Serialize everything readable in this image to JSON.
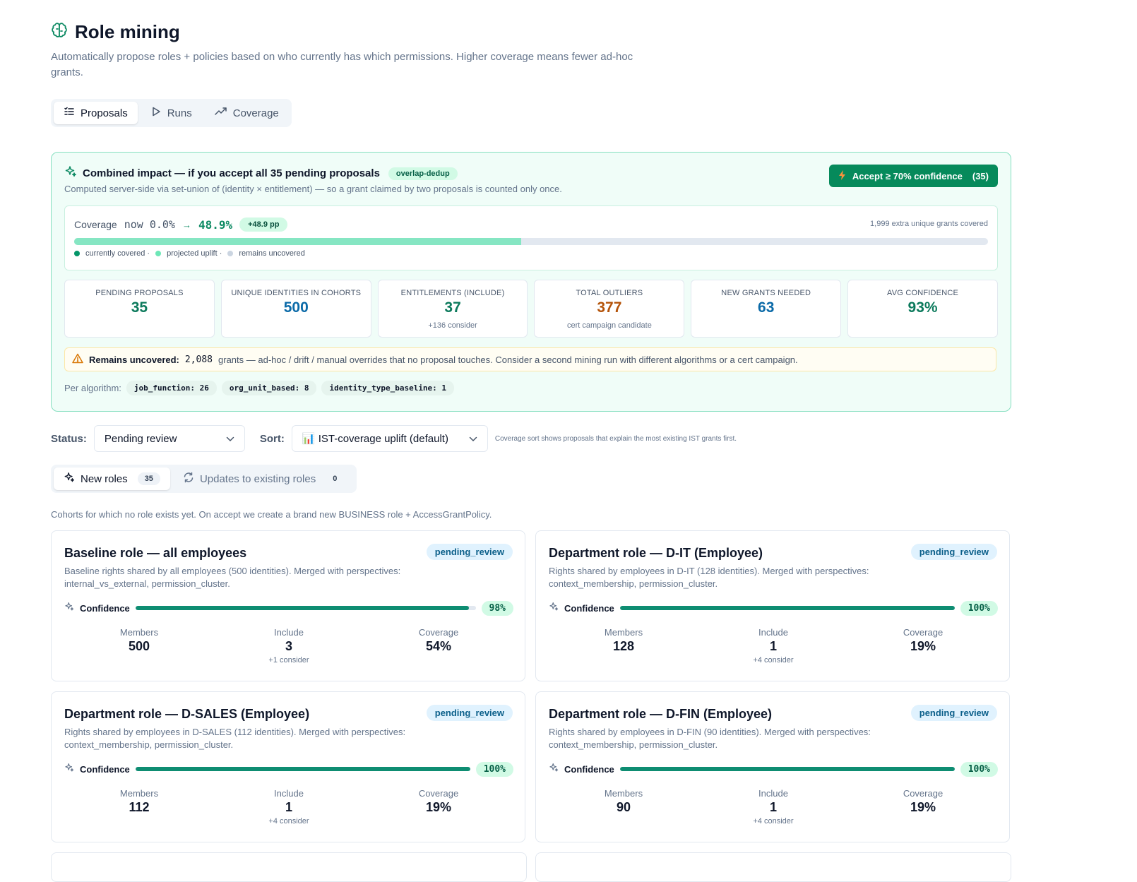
{
  "header": {
    "title": "Role mining",
    "subtitle": "Automatically propose roles + policies based on who currently has which permissions. Higher coverage means fewer ad-hoc grants."
  },
  "tabs": [
    {
      "label": "Proposals",
      "icon": "list-check-icon",
      "active": true
    },
    {
      "label": "Runs",
      "icon": "play-icon",
      "active": false
    },
    {
      "label": "Coverage",
      "icon": "trend-up-icon",
      "active": false
    }
  ],
  "impact": {
    "title": "Combined impact — if you accept all 35 pending proposals",
    "tag": "overlap-dedup",
    "description": "Computed server-side via set-union of (identity × entitlement) — so a grant claimed by two proposals is counted only once.",
    "accept_label": "Accept ≥ 70% confidence",
    "accept_count": "(35)",
    "coverage": {
      "label": "Coverage",
      "now": "now 0.0%",
      "arrow": "→",
      "projected": "48.9%",
      "delta": "+48.9 pp",
      "extra": "1,999 extra unique grants covered",
      "current_pct": 0.0,
      "projected_pct": 48.9,
      "legend": [
        "currently covered ·",
        "projected uplift ·",
        "remains uncovered"
      ]
    },
    "stats": [
      {
        "label": "Pending proposals",
        "value": "35",
        "sub": "",
        "color": "green"
      },
      {
        "label": "Unique identities in cohorts",
        "value": "500",
        "sub": "",
        "color": "blue"
      },
      {
        "label": "Entitlements (include)",
        "value": "37",
        "sub": "+136 consider",
        "color": "green"
      },
      {
        "label": "Total outliers",
        "value": "377",
        "sub": "cert campaign candidate",
        "color": "orange"
      },
      {
        "label": "New grants needed",
        "value": "63",
        "sub": "",
        "color": "blue"
      },
      {
        "label": "Avg confidence",
        "value": "93%",
        "sub": "",
        "color": "green"
      }
    ],
    "uncovered": {
      "label": "Remains uncovered:",
      "count": "2,088",
      "text": "grants — ad-hoc / drift / manual overrides that no proposal touches. Consider a second mining run with different algorithms or a cert campaign."
    },
    "per_algorithm": {
      "label": "Per algorithm:",
      "chips": [
        "job_function: 26",
        "org_unit_based: 8",
        "identity_type_baseline: 1"
      ]
    }
  },
  "filters": {
    "status_label": "Status:",
    "status_value": "Pending review",
    "sort_label": "Sort:",
    "sort_icon": "📊",
    "sort_value": "IST-coverage uplift (default)",
    "note": "Coverage sort shows proposals that explain the most existing IST grants first."
  },
  "subtabs": [
    {
      "label": "New roles",
      "count": "35",
      "active": true,
      "icon": "sparkle-icon"
    },
    {
      "label": "Updates to existing roles",
      "count": "0",
      "active": false,
      "icon": "refresh-icon"
    }
  ],
  "cohort_note": "Cohorts for which no role exists yet. On accept we create a brand new BUSINESS role + AccessGrantPolicy.",
  "cards": [
    {
      "title": "Baseline role — all employees",
      "status": "pending_review",
      "desc": "Baseline rights shared by all employees (500 identities). Merged with perspectives: internal_vs_external, permission_cluster.",
      "confidence_label": "Confidence",
      "confidence": "98%",
      "confidence_value": 98,
      "members_label": "Members",
      "members": "500",
      "include_label": "Include",
      "include": "3",
      "include_sub": "+1 consider",
      "coverage_label": "Coverage",
      "coverage": "54%"
    },
    {
      "title": "Department role — D-IT (Employee)",
      "status": "pending_review",
      "desc": "Rights shared by employees in D-IT (128 identities). Merged with perspectives: context_membership, permission_cluster.",
      "confidence_label": "Confidence",
      "confidence": "100%",
      "confidence_value": 100,
      "members_label": "Members",
      "members": "128",
      "include_label": "Include",
      "include": "1",
      "include_sub": "+4 consider",
      "coverage_label": "Coverage",
      "coverage": "19%"
    },
    {
      "title": "Department role — D-SALES (Employee)",
      "status": "pending_review",
      "desc": "Rights shared by employees in D-SALES (112 identities). Merged with perspectives: context_membership, permission_cluster.",
      "confidence_label": "Confidence",
      "confidence": "100%",
      "confidence_value": 100,
      "members_label": "Members",
      "members": "112",
      "include_label": "Include",
      "include": "1",
      "include_sub": "+4 consider",
      "coverage_label": "Coverage",
      "coverage": "19%"
    },
    {
      "title": "Department role — D-FIN (Employee)",
      "status": "pending_review",
      "desc": "Rights shared by employees in D-FIN (90 identities). Merged with perspectives: context_membership, permission_cluster.",
      "confidence_label": "Confidence",
      "confidence": "100%",
      "confidence_value": 100,
      "members_label": "Members",
      "members": "90",
      "include_label": "Include",
      "include": "1",
      "include_sub": "+4 consider",
      "coverage_label": "Coverage",
      "coverage": "19%"
    }
  ],
  "colors": {
    "accent": "#068a5b",
    "covered": "#059669",
    "uplift": "#86e6c3",
    "uncovered": "#e2e8f0",
    "status_bg": "#e0f2fe"
  }
}
